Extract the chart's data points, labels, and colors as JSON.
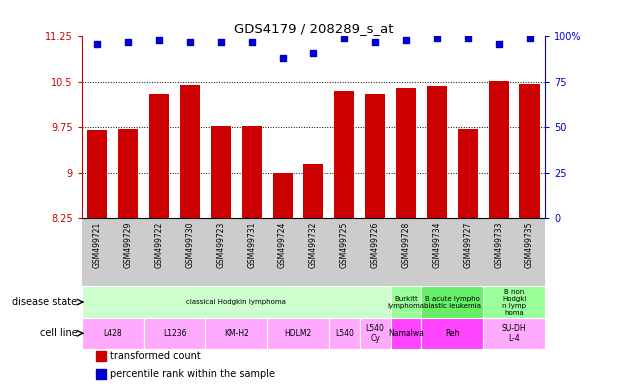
{
  "title": "GDS4179 / 208289_s_at",
  "samples": [
    "GSM499721",
    "GSM499729",
    "GSM499722",
    "GSM499730",
    "GSM499723",
    "GSM499731",
    "GSM499724",
    "GSM499732",
    "GSM499725",
    "GSM499726",
    "GSM499728",
    "GSM499734",
    "GSM499727",
    "GSM499733",
    "GSM499735"
  ],
  "bar_values": [
    9.7,
    9.73,
    10.3,
    10.45,
    9.78,
    9.77,
    9.0,
    9.15,
    10.35,
    10.3,
    10.4,
    10.44,
    9.72,
    10.52,
    10.47
  ],
  "dot_values": [
    96,
    97,
    98,
    97,
    97,
    97,
    88,
    91,
    99,
    97,
    98,
    99,
    99,
    96,
    99
  ],
  "ylim_left": [
    8.25,
    11.25
  ],
  "ylim_right": [
    0,
    100
  ],
  "yticks_left": [
    8.25,
    9.0,
    9.75,
    10.5,
    11.25
  ],
  "yticks_right": [
    0,
    25,
    50,
    75,
    100
  ],
  "ytick_labels_left": [
    "8.25",
    "9",
    "9.75",
    "10.5",
    "11.25"
  ],
  "ytick_labels_right": [
    "0",
    "25",
    "50",
    "75",
    "100%"
  ],
  "bar_color": "#cc0000",
  "dot_color": "#0000cc",
  "grid_lines": [
    9.0,
    9.75,
    10.5
  ],
  "disease_state_groups": [
    {
      "label": "classical Hodgkin lymphoma",
      "start": 0,
      "end": 10,
      "color": "#ccffcc"
    },
    {
      "label": "Burkitt\nlymphoma",
      "start": 10,
      "end": 11,
      "color": "#99ff99"
    },
    {
      "label": "B acute lympho\nblastic leukemia",
      "start": 11,
      "end": 13,
      "color": "#66ee66"
    },
    {
      "label": "B non\nHodgki\nn lymp\nhoma",
      "start": 13,
      "end": 15,
      "color": "#99ff99"
    }
  ],
  "cell_line_groups": [
    {
      "label": "L428",
      "start": 0,
      "end": 2,
      "color": "#ffaaff"
    },
    {
      "label": "L1236",
      "start": 2,
      "end": 4,
      "color": "#ffaaff"
    },
    {
      "label": "KM-H2",
      "start": 4,
      "end": 6,
      "color": "#ffaaff"
    },
    {
      "label": "HDLM2",
      "start": 6,
      "end": 8,
      "color": "#ffaaff"
    },
    {
      "label": "L540",
      "start": 8,
      "end": 9,
      "color": "#ffaaff"
    },
    {
      "label": "L540\nCy",
      "start": 9,
      "end": 10,
      "color": "#ffaaff"
    },
    {
      "label": "Namalwa",
      "start": 10,
      "end": 11,
      "color": "#ff44ff"
    },
    {
      "label": "Reh",
      "start": 11,
      "end": 13,
      "color": "#ff44ff"
    },
    {
      "label": "SU-DH\nL-4",
      "start": 13,
      "end": 15,
      "color": "#ffaaff"
    }
  ],
  "left_axis_color": "#cc0000",
  "right_axis_color": "#0000cc",
  "legend": [
    {
      "color": "#cc0000",
      "label": "transformed count"
    },
    {
      "color": "#0000cc",
      "label": "percentile rank within the sample"
    }
  ],
  "tick_bg_color": "#cccccc",
  "figsize": [
    6.3,
    3.84
  ],
  "dpi": 100
}
